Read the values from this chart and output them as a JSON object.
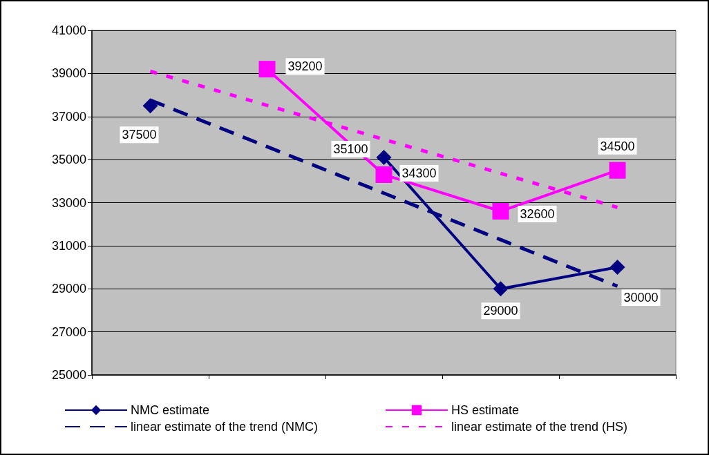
{
  "chart_data": {
    "type": "line",
    "categories": [
      null,
      null,
      null,
      null,
      null
    ],
    "ylim": [
      25000,
      41000
    ],
    "yticks": [
      25000,
      27000,
      29000,
      31000,
      33000,
      35000,
      37000,
      39000,
      41000
    ],
    "grid": "y",
    "legend": "bottom",
    "series": [
      {
        "name": "NMC estimate",
        "color": "#000080",
        "values": [
          37500,
          null,
          35100,
          29000,
          30000
        ],
        "marker": "diamond",
        "line_style": "solid",
        "value_labels": [
          "37500",
          null,
          "35100",
          "29000",
          "30000"
        ]
      },
      {
        "name": "HS estimate",
        "color": "#ff00ff",
        "values": [
          null,
          39200,
          34300,
          32600,
          34500
        ],
        "marker": "square",
        "line_style": "solid",
        "value_labels": [
          null,
          "39200",
          "34300",
          "32600",
          "34500"
        ]
      },
      {
        "name": "linear estimate of the trend (NMC)",
        "color": "#000080",
        "values": [
          37760,
          35600,
          33440,
          31280,
          29120
        ],
        "marker": "none",
        "line_style": "dashed"
      },
      {
        "name": "linear estimate of the trend (HS)",
        "color": "#ff00ff",
        "values": [
          39100,
          37520,
          35940,
          34360,
          32780
        ],
        "marker": "none",
        "line_style": "dotted"
      }
    ]
  }
}
